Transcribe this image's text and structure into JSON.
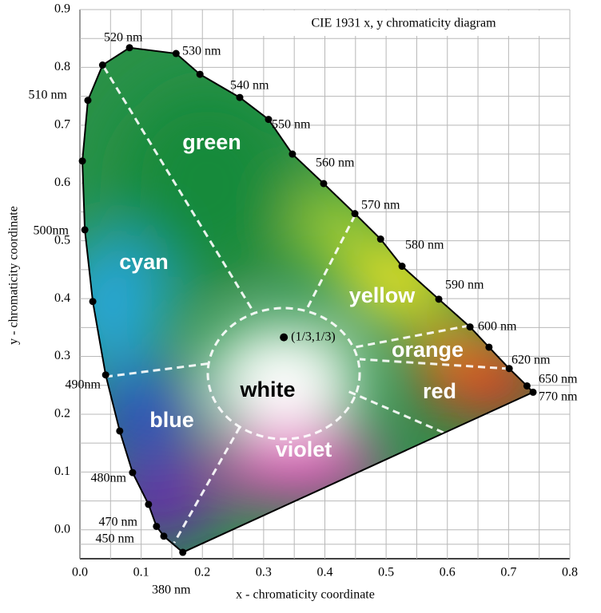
{
  "chart_data": {
    "type": "locus",
    "title": "CIE 1931 x, y chromaticity diagram",
    "xlabel": "x - chromaticity coordinate",
    "ylabel": "y - chromaticity coordinate",
    "xlim": [
      0,
      0.8
    ],
    "ylim": [
      -0.05,
      0.9
    ],
    "xticks": [
      {
        "value": 0,
        "label": "0.0"
      },
      0.1,
      0.2,
      0.3,
      0.4,
      0.5,
      0.6,
      0.7,
      0.8
    ],
    "yticks": [
      {
        "value": 0,
        "label": "0.0"
      },
      0.1,
      0.2,
      0.3,
      0.4,
      0.5,
      0.6,
      0.7,
      0.8,
      0.9
    ],
    "grid": true,
    "locus": {
      "color": "#000000",
      "points": [
        {
          "x": 0.168,
          "y": -0.039,
          "label": "380 nm"
        },
        {
          "x": 0.137,
          "y": -0.011,
          "label": "450 nm"
        },
        {
          "x": 0.125,
          "y": 0.006,
          "label": "470 nm"
        },
        {
          "x": 0.112,
          "y": 0.044
        },
        {
          "x": 0.086,
          "y": 0.099,
          "label": "480nm"
        },
        {
          "x": 0.065,
          "y": 0.171
        },
        {
          "x": 0.042,
          "y": 0.268,
          "label": "490nm"
        },
        {
          "x": 0.021,
          "y": 0.395
        },
        {
          "x": 0.008,
          "y": 0.519,
          "label": "500nm"
        },
        {
          "x": 0.004,
          "y": 0.638
        },
        {
          "x": 0.013,
          "y": 0.743,
          "label": "510 nm"
        },
        {
          "x": 0.037,
          "y": 0.804
        },
        {
          "x": 0.081,
          "y": 0.834,
          "label": "520 nm"
        },
        {
          "x": 0.157,
          "y": 0.824,
          "label": "530 nm"
        },
        {
          "x": 0.196,
          "y": 0.788,
          "label": "540 nm"
        },
        {
          "x": 0.261,
          "y": 0.748
        },
        {
          "x": 0.308,
          "y": 0.71,
          "label": "550 nm"
        },
        {
          "x": 0.347,
          "y": 0.65,
          "label": "560 nm"
        },
        {
          "x": 0.398,
          "y": 0.599
        },
        {
          "x": 0.449,
          "y": 0.547,
          "label": "570 nm"
        },
        {
          "x": 0.491,
          "y": 0.503,
          "label": "580 nm"
        },
        {
          "x": 0.526,
          "y": 0.456
        },
        {
          "x": 0.586,
          "y": 0.399,
          "label": "590 nm"
        },
        {
          "x": 0.637,
          "y": 0.351,
          "label": "600 nm"
        },
        {
          "x": 0.668,
          "y": 0.316
        },
        {
          "x": 0.701,
          "y": 0.279,
          "label": "620 nm"
        },
        {
          "x": 0.73,
          "y": 0.249,
          "label": "650 nm"
        },
        {
          "x": 0.74,
          "y": 0.238,
          "label": "770 nm"
        }
      ]
    },
    "regions": [
      {
        "label": "green",
        "color": "#ffffff"
      },
      {
        "label": "cyan",
        "color": "#ffffff"
      },
      {
        "label": "yellow",
        "color": "#ffffff"
      },
      {
        "label": "orange",
        "color": "#ffffff"
      },
      {
        "label": "red",
        "color": "#ffffff"
      },
      {
        "label": "white",
        "color": "#000000"
      },
      {
        "label": "blue",
        "color": "#ffffff"
      },
      {
        "label": "violet",
        "color": "#ffffff"
      }
    ],
    "white_point": {
      "x": 0.333,
      "y": 0.333,
      "label": "(1/3,1/3)"
    }
  }
}
